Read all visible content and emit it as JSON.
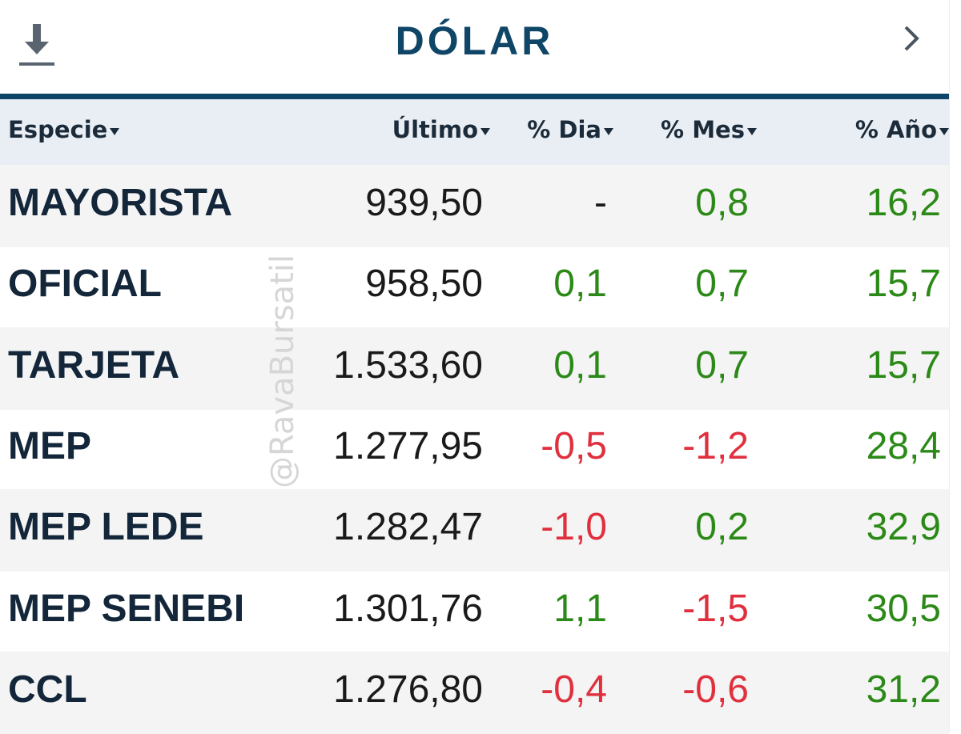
{
  "header": {
    "title": "DÓLAR"
  },
  "watermark": "@RavaBursatil",
  "table": {
    "columns": [
      "Especie",
      "Último",
      "% Dia",
      "% Mes",
      "% Año"
    ],
    "rows": [
      [
        "MAYORISTA",
        "939,50",
        "-",
        "0,8",
        "16,2"
      ],
      [
        "OFICIAL",
        "958,50",
        "0,1",
        "0,7",
        "15,7"
      ],
      [
        "TARJETA",
        "1.533,60",
        "0,1",
        "0,7",
        "15,7"
      ],
      [
        "MEP",
        "1.277,95",
        "-0,5",
        "-1,2",
        "28,4"
      ],
      [
        "MEP LEDE",
        "1.282,47",
        "-1,0",
        "0,2",
        "32,9"
      ],
      [
        "MEP SENEBI",
        "1.301,76",
        "1,1",
        "-1,5",
        "30,5"
      ],
      [
        "CCL",
        "1.276,80",
        "-0,4",
        "-0,6",
        "31,2"
      ]
    ]
  }
}
